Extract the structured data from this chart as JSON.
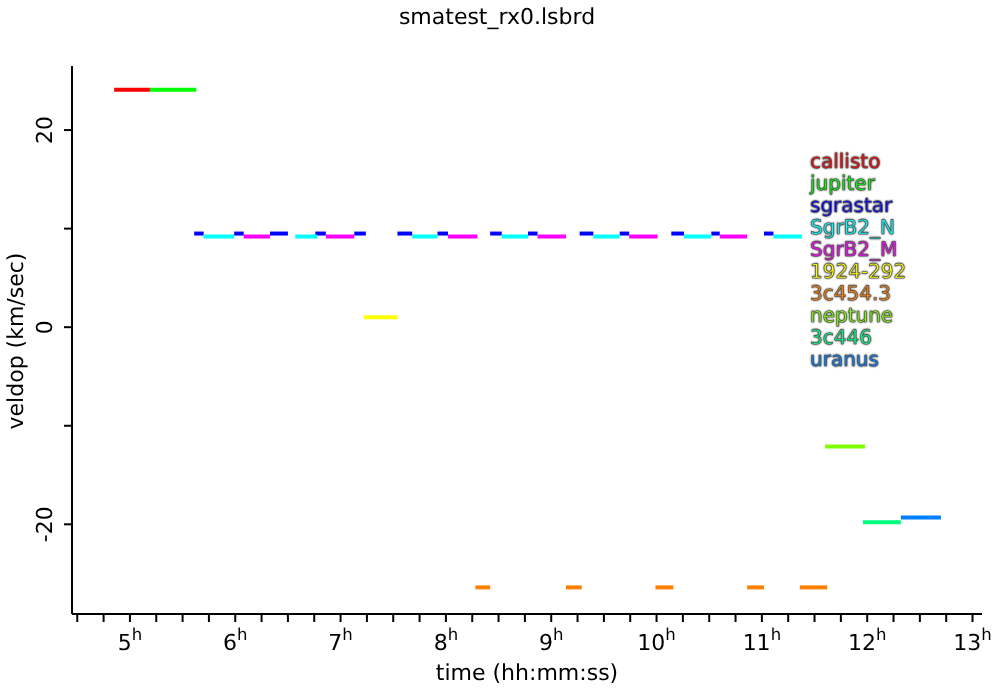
{
  "chart_data": {
    "type": "line",
    "title": "smatest_rx0.lsbrd",
    "xlabel": "time (hh:mm:ss)",
    "ylabel": "veldop (km/sec)",
    "xlim": [
      4.45,
      13.09
    ],
    "ylim": [
      -29.1,
      26.5
    ],
    "xticks": [
      {
        "value": 4.5,
        "label": null
      },
      {
        "value": 4.75,
        "label": null
      },
      {
        "value": 5,
        "label": "5$^{h}$"
      },
      {
        "value": 5.25,
        "label": null
      },
      {
        "value": 5.5,
        "label": null
      },
      {
        "value": 5.75,
        "label": null
      },
      {
        "value": 6,
        "label": "6$^{h}$"
      },
      {
        "value": 6.25,
        "label": null
      },
      {
        "value": 6.5,
        "label": null
      },
      {
        "value": 6.75,
        "label": null
      },
      {
        "value": 7,
        "label": "7$^{h}$"
      },
      {
        "value": 7.25,
        "label": null
      },
      {
        "value": 7.5,
        "label": null
      },
      {
        "value": 7.75,
        "label": null
      },
      {
        "value": 8,
        "label": "8$^{h}$"
      },
      {
        "value": 8.25,
        "label": null
      },
      {
        "value": 8.5,
        "label": null
      },
      {
        "value": 8.75,
        "label": null
      },
      {
        "value": 9,
        "label": "9$^{h}$"
      },
      {
        "value": 9.25,
        "label": null
      },
      {
        "value": 9.5,
        "label": null
      },
      {
        "value": 9.75,
        "label": null
      },
      {
        "value": 10,
        "label": "10$^{h}$"
      },
      {
        "value": 10.25,
        "label": null
      },
      {
        "value": 10.5,
        "label": null
      },
      {
        "value": 10.75,
        "label": null
      },
      {
        "value": 11,
        "label": "11$^{h}$"
      },
      {
        "value": 11.25,
        "label": null
      },
      {
        "value": 11.5,
        "label": null
      },
      {
        "value": 11.75,
        "label": null
      },
      {
        "value": 12,
        "label": "12$^{h}$"
      },
      {
        "value": 12.25,
        "label": null
      },
      {
        "value": 12.5,
        "label": null
      },
      {
        "value": 12.75,
        "label": null
      },
      {
        "value": 13,
        "label": "13$^{h}$"
      }
    ],
    "yticks": [
      -20,
      {
        "value": -10,
        "label": null
      },
      0,
      {
        "value": 10,
        "label": null
      },
      20
    ],
    "legend": "right",
    "marker": "none",
    "line_style": "solid",
    "series": [
      {
        "name": "callisto",
        "color": "#ff0000",
        "x": [
          4.85,
          5.19
        ],
        "values": [
          24.1,
          24.1
        ]
      },
      {
        "name": "jupiter",
        "color": "#00ff00",
        "x": [
          5.19,
          5.63
        ],
        "values": [
          24.1,
          24.1
        ]
      },
      {
        "name": "sgrastar",
        "color": "#0000ff",
        "x": [
          5.61,
          5.7
        ],
        "values": [
          9.5,
          9.5
        ]
      },
      {
        "name": "SgrB2_N",
        "color": "#00ffff",
        "x": [
          5.7,
          5.99
        ],
        "values": [
          9.2,
          9.2
        ]
      },
      {
        "name": "SgrB2_M",
        "color": "#ff00ff",
        "x": [
          6.08,
          6.33
        ],
        "values": [
          9.2,
          9.2
        ]
      },
      {
        "name": "1924-292",
        "color": "#ffff00",
        "x": [
          7.22,
          7.54
        ],
        "values": [
          1.0,
          1.0
        ]
      },
      {
        "name": "3c454.3",
        "color": "#ff8000",
        "x": [
          8.28,
          8.42
        ],
        "values": [
          -26.4,
          -26.4
        ]
      },
      {
        "name": "neptune",
        "color": "#80ff00",
        "x": [
          11.6,
          11.98
        ],
        "values": [
          -12.1,
          -12.1
        ]
      },
      {
        "name": "3c446",
        "color": "#00ff80",
        "x": [
          11.96,
          12.32
        ],
        "values": [
          -19.8,
          -19.8
        ]
      },
      {
        "name": "uranus",
        "color": "#0080ff",
        "x": [
          12.32,
          12.7
        ],
        "values": [
          -19.3,
          -19.3
        ]
      },
      {
        "color": "#0000ff",
        "x": [
          5.99,
          6.08
        ],
        "values": [
          9.5,
          9.5
        ]
      },
      {
        "color": "#0000ff",
        "x": [
          6.33,
          6.5
        ],
        "values": [
          9.5,
          9.5
        ]
      },
      {
        "color": "#0000ff",
        "x": [
          6.76,
          6.86
        ],
        "values": [
          9.5,
          9.5
        ]
      },
      {
        "color": "#0000ff",
        "x": [
          7.13,
          7.24
        ],
        "values": [
          9.5,
          9.5
        ]
      },
      {
        "color": "#0000ff",
        "x": [
          7.54,
          7.68
        ],
        "values": [
          9.5,
          9.5
        ]
      },
      {
        "color": "#0000ff",
        "x": [
          7.92,
          8.02
        ],
        "values": [
          9.5,
          9.5
        ]
      },
      {
        "color": "#0000ff",
        "x": [
          8.42,
          8.53
        ],
        "values": [
          9.5,
          9.5
        ]
      },
      {
        "color": "#0000ff",
        "x": [
          8.78,
          8.87
        ],
        "values": [
          9.5,
          9.5
        ]
      },
      {
        "color": "#0000ff",
        "x": [
          9.27,
          9.4
        ],
        "values": [
          9.5,
          9.5
        ]
      },
      {
        "color": "#0000ff",
        "x": [
          9.65,
          9.74
        ],
        "values": [
          9.5,
          9.5
        ]
      },
      {
        "color": "#0000ff",
        "x": [
          10.14,
          10.26
        ],
        "values": [
          9.5,
          9.5
        ]
      },
      {
        "color": "#0000ff",
        "x": [
          10.52,
          10.6
        ],
        "values": [
          9.5,
          9.5
        ]
      },
      {
        "color": "#0000ff",
        "x": [
          11.02,
          11.11
        ],
        "values": [
          9.5,
          9.5
        ]
      },
      {
        "color": "#00ffff",
        "x": [
          6.57,
          6.78
        ],
        "values": [
          9.2,
          9.2
        ]
      },
      {
        "color": "#00ffff",
        "x": [
          7.68,
          7.92
        ],
        "values": [
          9.2,
          9.2
        ]
      },
      {
        "color": "#00ffff",
        "x": [
          8.53,
          8.78
        ],
        "values": [
          9.2,
          9.2
        ]
      },
      {
        "color": "#00ffff",
        "x": [
          9.4,
          9.65
        ],
        "values": [
          9.2,
          9.2
        ]
      },
      {
        "color": "#00ffff",
        "x": [
          10.26,
          10.52
        ],
        "values": [
          9.2,
          9.2
        ]
      },
      {
        "color": "#00ffff",
        "x": [
          11.11,
          11.38
        ],
        "values": [
          9.2,
          9.2
        ]
      },
      {
        "color": "#ff00ff",
        "x": [
          6.86,
          7.13
        ],
        "values": [
          9.2,
          9.2
        ]
      },
      {
        "color": "#ff00ff",
        "x": [
          8.02,
          8.3
        ],
        "values": [
          9.2,
          9.2
        ]
      },
      {
        "color": "#ff00ff",
        "x": [
          8.87,
          9.14
        ],
        "values": [
          9.2,
          9.2
        ]
      },
      {
        "color": "#ff00ff",
        "x": [
          9.74,
          10.01
        ],
        "values": [
          9.2,
          9.2
        ]
      },
      {
        "color": "#ff00ff",
        "x": [
          10.6,
          10.86
        ],
        "values": [
          9.2,
          9.2
        ]
      },
      {
        "color": "#ff8000",
        "x": [
          9.14,
          9.29
        ],
        "values": [
          -26.4,
          -26.4
        ]
      },
      {
        "color": "#ff8000",
        "x": [
          9.99,
          10.16
        ],
        "values": [
          -26.4,
          -26.4
        ]
      },
      {
        "color": "#ff8000",
        "x": [
          10.86,
          11.02
        ],
        "values": [
          -26.4,
          -26.4
        ]
      },
      {
        "color": "#ff8000",
        "x": [
          11.36,
          11.62
        ],
        "values": [
          -26.4,
          -26.4
        ]
      }
    ]
  }
}
